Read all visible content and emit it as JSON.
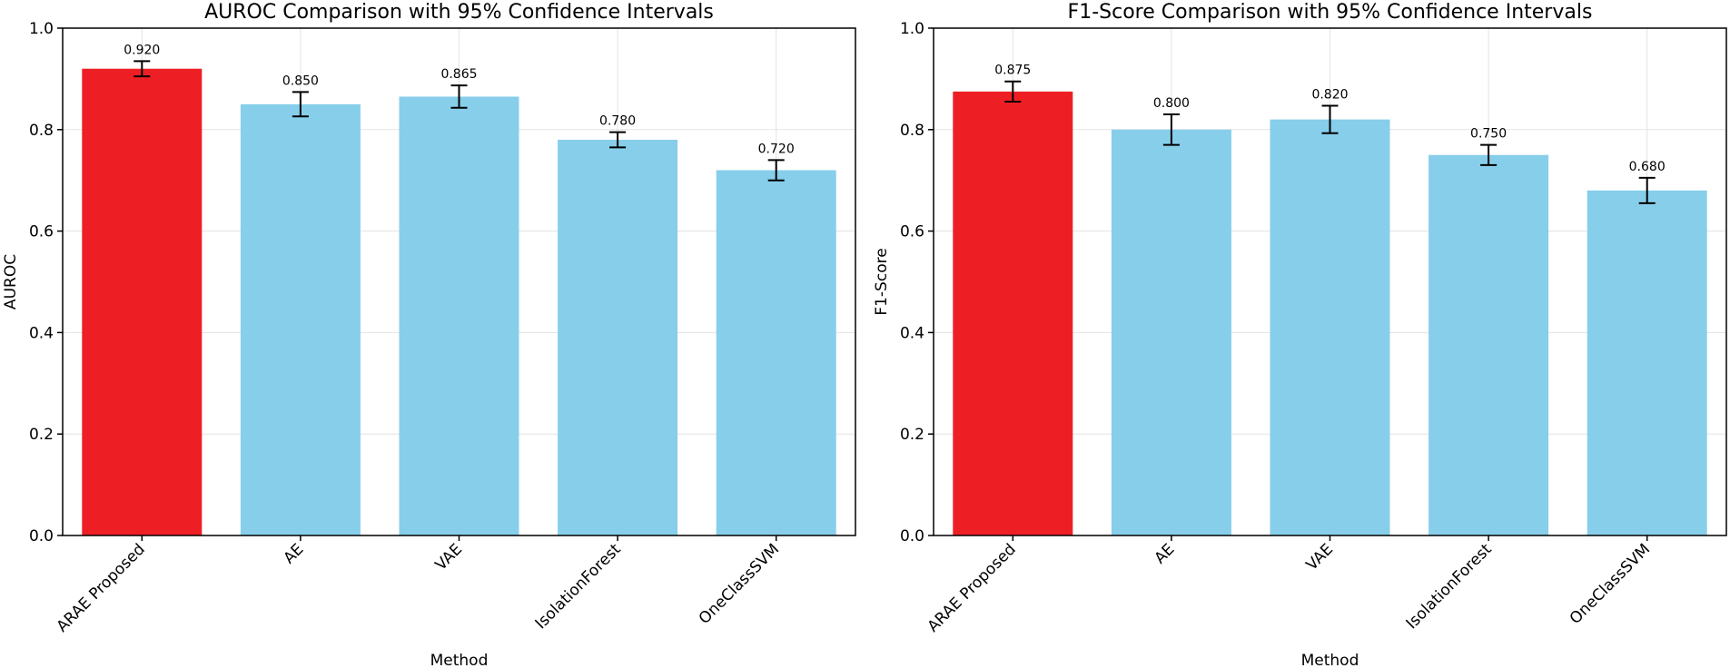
{
  "chart_data": [
    {
      "type": "bar",
      "title": "AUROC Comparison with 95% Confidence Intervals",
      "xlabel": "Method",
      "ylabel": "AUROC",
      "ylim": [
        0,
        1.0
      ],
      "yticks": [
        0.0,
        0.2,
        0.4,
        0.6,
        0.8,
        1.0
      ],
      "ytick_labels": [
        "0.0",
        "0.2",
        "0.4",
        "0.6",
        "0.8",
        "1.0"
      ],
      "grid": true,
      "categories": [
        "ARAE Proposed",
        "AE",
        "VAE",
        "IsolationForest",
        "OneClassSVM"
      ],
      "values": [
        0.92,
        0.85,
        0.865,
        0.78,
        0.72
      ],
      "value_labels": [
        "0.920",
        "0.850",
        "0.865",
        "0.780",
        "0.720"
      ],
      "ci_lower": [
        0.905,
        0.826,
        0.843,
        0.765,
        0.7
      ],
      "ci_upper": [
        0.935,
        0.874,
        0.887,
        0.795,
        0.74
      ],
      "colors": [
        "#ee1f24",
        "#87ceeb",
        "#87ceeb",
        "#87ceeb",
        "#87ceeb"
      ]
    },
    {
      "type": "bar",
      "title": "F1-Score Comparison with 95% Confidence Intervals",
      "xlabel": "Method",
      "ylabel": "F1-Score",
      "ylim": [
        0,
        1.0
      ],
      "yticks": [
        0.0,
        0.2,
        0.4,
        0.6,
        0.8,
        1.0
      ],
      "ytick_labels": [
        "0.0",
        "0.2",
        "0.4",
        "0.6",
        "0.8",
        "1.0"
      ],
      "grid": true,
      "categories": [
        "ARAE Proposed",
        "AE",
        "VAE",
        "IsolationForest",
        "OneClassSVM"
      ],
      "values": [
        0.875,
        0.8,
        0.82,
        0.75,
        0.68
      ],
      "value_labels": [
        "0.875",
        "0.800",
        "0.820",
        "0.750",
        "0.680"
      ],
      "ci_lower": [
        0.855,
        0.77,
        0.793,
        0.73,
        0.655
      ],
      "ci_upper": [
        0.895,
        0.83,
        0.847,
        0.77,
        0.705
      ],
      "colors": [
        "#ee1f24",
        "#87ceeb",
        "#87ceeb",
        "#87ceeb",
        "#87ceeb"
      ]
    }
  ]
}
